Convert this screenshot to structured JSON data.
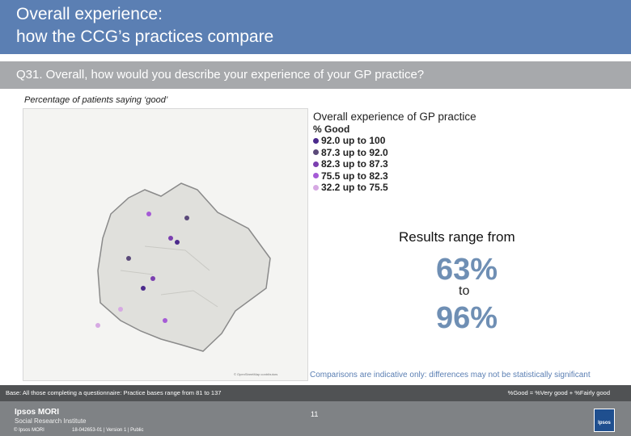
{
  "title": {
    "line1": "Overall experience:",
    "line2": "how the CCG’s practices compare"
  },
  "question": "Q31. Overall, how would you describe your experience of your GP practice?",
  "subtitle": "Percentage of patients saying ‘good’",
  "map": {
    "credit": "© OpenStreetMap contributors",
    "practices": [
      {
        "name": "p1",
        "band": 2
      },
      {
        "name": "p2",
        "band": 4
      },
      {
        "name": "p3",
        "band": 0
      },
      {
        "name": "p4",
        "band": 3
      }
    ]
  },
  "legend": {
    "title": "Overall experience of GP practice",
    "subtitle": "% Good",
    "items": [
      {
        "label": "92.0 up to 100",
        "color": "#4b2a8c"
      },
      {
        "label": "87.3 up to 92.0",
        "color": "#5b4a7a"
      },
      {
        "label": "82.3 up to 87.3",
        "color": "#7b3fb0"
      },
      {
        "label": "75.5 up to 82.3",
        "color": "#a55bd6"
      },
      {
        "label": "32.2 up to 75.5",
        "color": "#d6a9e3"
      }
    ]
  },
  "results": {
    "label": "Results range from",
    "low": "63%",
    "to": "to",
    "high": "96%"
  },
  "note": "Comparisons are indicative only: differences may not be statistically significant",
  "base": {
    "text": "Base: All those completing a questionnaire: Practice bases range from 81 to 137",
    "definition": "%Good = %Very good + %Fairly good"
  },
  "footer": {
    "logo": "Ipsos MORI",
    "institute": "Social Research Institute",
    "copyright": "© Ipsos MORI",
    "version": "18-042653-01 | Version 1 | Public",
    "page": "11",
    "ipsos_badge": "Ipsos"
  }
}
